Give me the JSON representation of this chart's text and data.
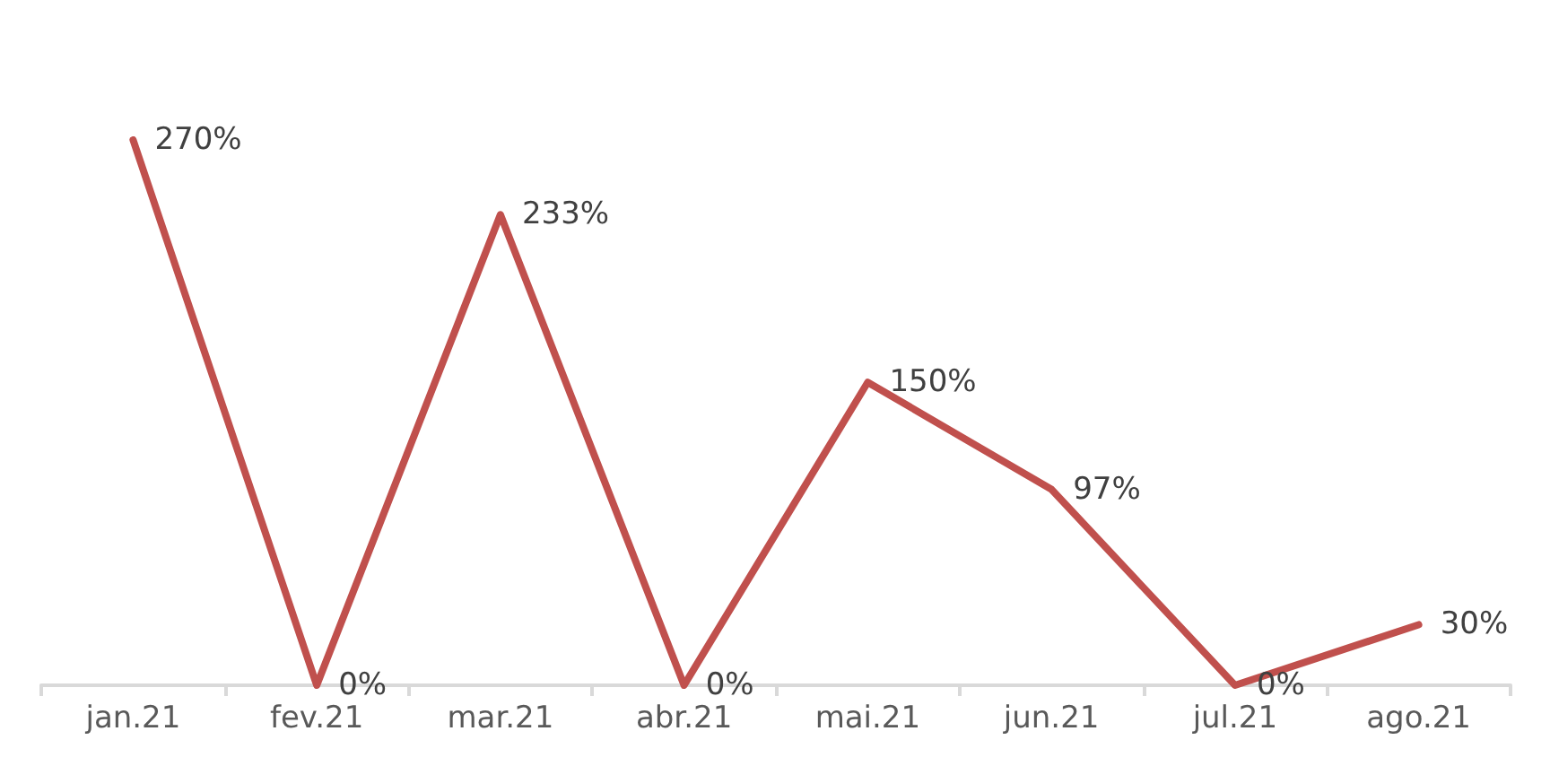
{
  "chart_data": {
    "type": "line",
    "categories": [
      "jan.21",
      "fev.21",
      "mar.21",
      "abr.21",
      "mai.21",
      "jun.21",
      "jul.21",
      "ago.21"
    ],
    "series": [
      {
        "color": "#c0504d",
        "values": [
          270,
          0,
          233,
          0,
          150,
          97,
          0,
          30
        ],
        "value_labels": [
          "270%",
          "0%",
          "233%",
          "0%",
          "150%",
          "97%",
          "0%",
          "30%"
        ]
      }
    ],
    "marker": "none",
    "line_style": "solid",
    "grid": false,
    "tick_labels": "x"
  }
}
